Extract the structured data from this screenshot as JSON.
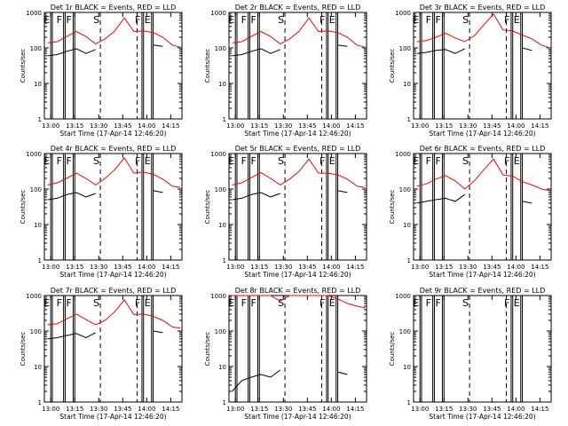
{
  "colors": {
    "events": "#000000",
    "lld": "#ff0000",
    "axis": "#000000"
  },
  "common": {
    "ylabel": "Counts/sec",
    "xlabel": "Start Time (17-Apr-14 12:46:20)",
    "xticks": [
      "13:00",
      "13:15",
      "13:30",
      "13:45",
      "14:00",
      "14:15"
    ],
    "yticks": [
      "1",
      "10",
      "100",
      "1000"
    ],
    "marker_labels": {
      "E": "E",
      "F": "F",
      "S": "S"
    }
  },
  "chart_data": [
    {
      "type": "line",
      "title": "Det 1r BLACK = Events, RED = LLD",
      "xlim": [
        "12:56",
        "14:22"
      ],
      "ylim": [
        1,
        1000
      ],
      "ylog": true,
      "x": [
        "12:58",
        "13:04",
        "13:10",
        "13:16",
        "13:22",
        "13:28",
        "13:34",
        "13:40",
        "13:46",
        "13:52",
        "13:58",
        "14:04",
        "14:10",
        "14:16",
        "14:21"
      ],
      "series": [
        {
          "name": "LLD",
          "values": [
            140,
            150,
            210,
            290,
            210,
            130,
            180,
            300,
            700,
            290,
            300,
            270,
            200,
            120,
            105
          ]
        },
        {
          "name": "Events",
          "values": [
            60,
            65,
            80,
            95,
            70,
            90,
            null,
            null,
            null,
            null,
            null,
            120,
            110,
            null,
            null
          ]
        }
      ]
    },
    {
      "type": "line",
      "title": "Det 2r BLACK = Events, RED = LLD",
      "xlim": [
        "12:56",
        "14:22"
      ],
      "ylim": [
        1,
        1000
      ],
      "ylog": true,
      "x": [
        "12:58",
        "13:04",
        "13:10",
        "13:16",
        "13:22",
        "13:28",
        "13:34",
        "13:40",
        "13:46",
        "13:52",
        "13:58",
        "14:04",
        "14:10",
        "14:16",
        "14:21"
      ],
      "series": [
        {
          "name": "LLD",
          "values": [
            140,
            150,
            210,
            290,
            210,
            130,
            180,
            300,
            700,
            290,
            300,
            270,
            200,
            120,
            105
          ]
        },
        {
          "name": "Events",
          "values": [
            60,
            65,
            80,
            95,
            70,
            90,
            null,
            null,
            null,
            null,
            null,
            120,
            110,
            null,
            null
          ]
        }
      ]
    },
    {
      "type": "line",
      "title": "Det 3r BLACK = Events, RED = LLD",
      "xlim": [
        "12:56",
        "14:22"
      ],
      "ylim": [
        1,
        1000
      ],
      "ylog": true,
      "x": [
        "12:58",
        "13:04",
        "13:10",
        "13:16",
        "13:22",
        "13:28",
        "13:34",
        "13:40",
        "13:46",
        "13:52",
        "13:58",
        "14:04",
        "14:10",
        "14:16",
        "14:21"
      ],
      "series": [
        {
          "name": "LLD",
          "values": [
            150,
            160,
            200,
            260,
            190,
            150,
            220,
            450,
            900,
            320,
            300,
            230,
            180,
            120,
            100
          ]
        },
        {
          "name": "Events",
          "values": [
            70,
            75,
            85,
            90,
            70,
            95,
            null,
            null,
            null,
            null,
            null,
            100,
            85,
            null,
            null
          ]
        }
      ]
    },
    {
      "type": "line",
      "title": "Det 4r BLACK = Events, RED = LLD",
      "xlim": [
        "12:56",
        "14:22"
      ],
      "ylim": [
        1,
        1000
      ],
      "ylog": true,
      "x": [
        "12:58",
        "13:04",
        "13:10",
        "13:16",
        "13:22",
        "13:28",
        "13:34",
        "13:40",
        "13:46",
        "13:52",
        "13:58",
        "14:04",
        "14:10",
        "14:16",
        "14:21"
      ],
      "series": [
        {
          "name": "LLD",
          "values": [
            130,
            150,
            200,
            280,
            200,
            130,
            200,
            350,
            750,
            280,
            300,
            260,
            190,
            120,
            110
          ]
        },
        {
          "name": "Events",
          "values": [
            50,
            55,
            70,
            80,
            60,
            75,
            null,
            null,
            null,
            null,
            null,
            90,
            80,
            null,
            null
          ]
        }
      ]
    },
    {
      "type": "line",
      "title": "Det 5r BLACK = Events, RED = LLD",
      "xlim": [
        "12:56",
        "14:22"
      ],
      "ylim": [
        1,
        1000
      ],
      "ylog": true,
      "x": [
        "12:58",
        "13:04",
        "13:10",
        "13:16",
        "13:22",
        "13:28",
        "13:34",
        "13:40",
        "13:46",
        "13:52",
        "13:58",
        "14:04",
        "14:10",
        "14:16",
        "14:21"
      ],
      "series": [
        {
          "name": "LLD",
          "values": [
            130,
            150,
            210,
            290,
            200,
            130,
            190,
            320,
            700,
            280,
            280,
            250,
            190,
            120,
            110
          ]
        },
        {
          "name": "Events",
          "values": [
            50,
            55,
            70,
            80,
            60,
            75,
            null,
            null,
            null,
            null,
            null,
            90,
            80,
            null,
            null
          ]
        }
      ]
    },
    {
      "type": "line",
      "title": "Det 6r BLACK = Events, RED = LLD",
      "xlim": [
        "12:56",
        "14:22"
      ],
      "ylim": [
        1,
        1000
      ],
      "ylog": true,
      "x": [
        "12:58",
        "13:04",
        "13:10",
        "13:16",
        "13:22",
        "13:28",
        "13:34",
        "13:40",
        "13:46",
        "13:52",
        "13:58",
        "14:04",
        "14:10",
        "14:16",
        "14:21"
      ],
      "series": [
        {
          "name": "LLD",
          "values": [
            120,
            140,
            190,
            240,
            170,
            100,
            170,
            350,
            700,
            250,
            230,
            160,
            130,
            100,
            90
          ]
        },
        {
          "name": "Events",
          "values": [
            40,
            45,
            50,
            55,
            45,
            70,
            null,
            null,
            null,
            null,
            null,
            45,
            40,
            null,
            null
          ]
        }
      ]
    },
    {
      "type": "line",
      "title": "Det 7r BLACK = Events, RED = LLD",
      "xlim": [
        "12:56",
        "14:22"
      ],
      "ylim": [
        1,
        1000
      ],
      "ylog": true,
      "x": [
        "12:58",
        "13:04",
        "13:10",
        "13:16",
        "13:22",
        "13:28",
        "13:34",
        "13:40",
        "13:46",
        "13:52",
        "13:58",
        "14:04",
        "14:10",
        "14:16",
        "14:21"
      ],
      "series": [
        {
          "name": "LLD",
          "values": [
            150,
            160,
            220,
            300,
            210,
            150,
            200,
            350,
            750,
            290,
            300,
            260,
            200,
            130,
            120
          ]
        },
        {
          "name": "Events",
          "values": [
            60,
            65,
            75,
            85,
            65,
            90,
            null,
            null,
            null,
            null,
            null,
            100,
            90,
            null,
            null
          ]
        }
      ]
    },
    {
      "type": "line",
      "title": "Det 8r BLACK = Events, RED = LLD",
      "xlim": [
        "12:56",
        "14:22"
      ],
      "ylim": [
        1,
        1000
      ],
      "ylog": true,
      "x": [
        "12:58",
        "13:04",
        "13:10",
        "13:16",
        "13:22",
        "13:28",
        "13:34",
        "13:40",
        "13:46",
        "13:52",
        "13:58",
        "14:04",
        "14:10",
        "14:16",
        "14:21"
      ],
      "series": [
        {
          "name": "LLD",
          "values": [
            1000,
            1000,
            1000,
            1000,
            1000,
            700,
            1000,
            1000,
            1000,
            1000,
            1000,
            800,
            600,
            500,
            450
          ]
        },
        {
          "name": "Events",
          "values": [
            2,
            4,
            5,
            6,
            5,
            8,
            null,
            null,
            null,
            null,
            null,
            7,
            6,
            null,
            null
          ]
        }
      ]
    },
    {
      "type": "line",
      "title": "Det 9r BLACK = Events, RED = LLD",
      "xlim": [
        "12:56",
        "14:22"
      ],
      "ylim": [
        1,
        1000
      ],
      "ylog": true,
      "x": [],
      "series": []
    }
  ],
  "panels": [
    {
      "title": "Det 1r BLACK = Events, RED = LLD"
    },
    {
      "title": "Det 2r BLACK = Events, RED = LLD"
    },
    {
      "title": "Det 3r BLACK = Events, RED = LLD"
    },
    {
      "title": "Det 4r BLACK = Events, RED = LLD"
    },
    {
      "title": "Det 5r BLACK = Events, RED = LLD"
    },
    {
      "title": "Det 6r BLACK = Events, RED = LLD"
    },
    {
      "title": "Det 7r BLACK = Events, RED = LLD"
    },
    {
      "title": "Det 8r BLACK = Events, RED = LLD"
    },
    {
      "title": "Det 9r BLACK = Events, RED = LLD"
    }
  ]
}
